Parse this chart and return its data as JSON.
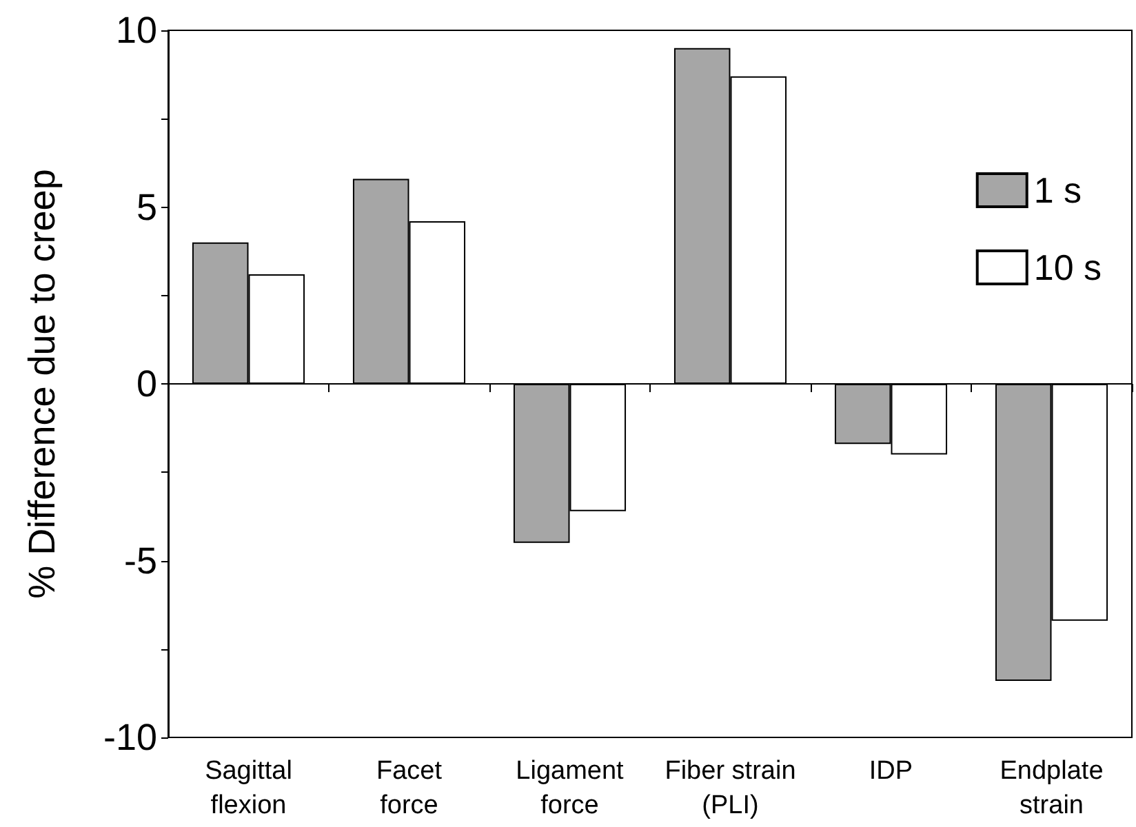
{
  "chart_data": {
    "type": "bar",
    "ylabel": "% Difference due to creep",
    "categories": [
      "Sagittal\nflexion",
      "Facet\nforce",
      "Ligament\nforce",
      "Fiber strain\n(PLI)",
      "IDP",
      "Endplate\nstrain"
    ],
    "series": [
      {
        "name": "1 s",
        "color": "#a6a6a6",
        "values": [
          4.0,
          5.8,
          -4.5,
          9.5,
          -1.7,
          -8.4
        ]
      },
      {
        "name": "10 s",
        "color": "#ffffff",
        "values": [
          3.1,
          4.6,
          -3.6,
          8.7,
          -2.0,
          -6.7
        ]
      }
    ],
    "ylim": [
      -10,
      10
    ],
    "yticks": [
      -10,
      {
        "value": -7.5,
        "label": null
      },
      -5,
      {
        "value": -2.5,
        "label": null
      },
      0,
      {
        "value": 2.5,
        "label": null
      },
      5,
      {
        "value": 7.5,
        "label": null
      },
      10
    ],
    "ref_lines": [
      {
        "axis": "y",
        "value": 0,
        "color": "#000000"
      }
    ],
    "grid": false,
    "legend": "right"
  }
}
